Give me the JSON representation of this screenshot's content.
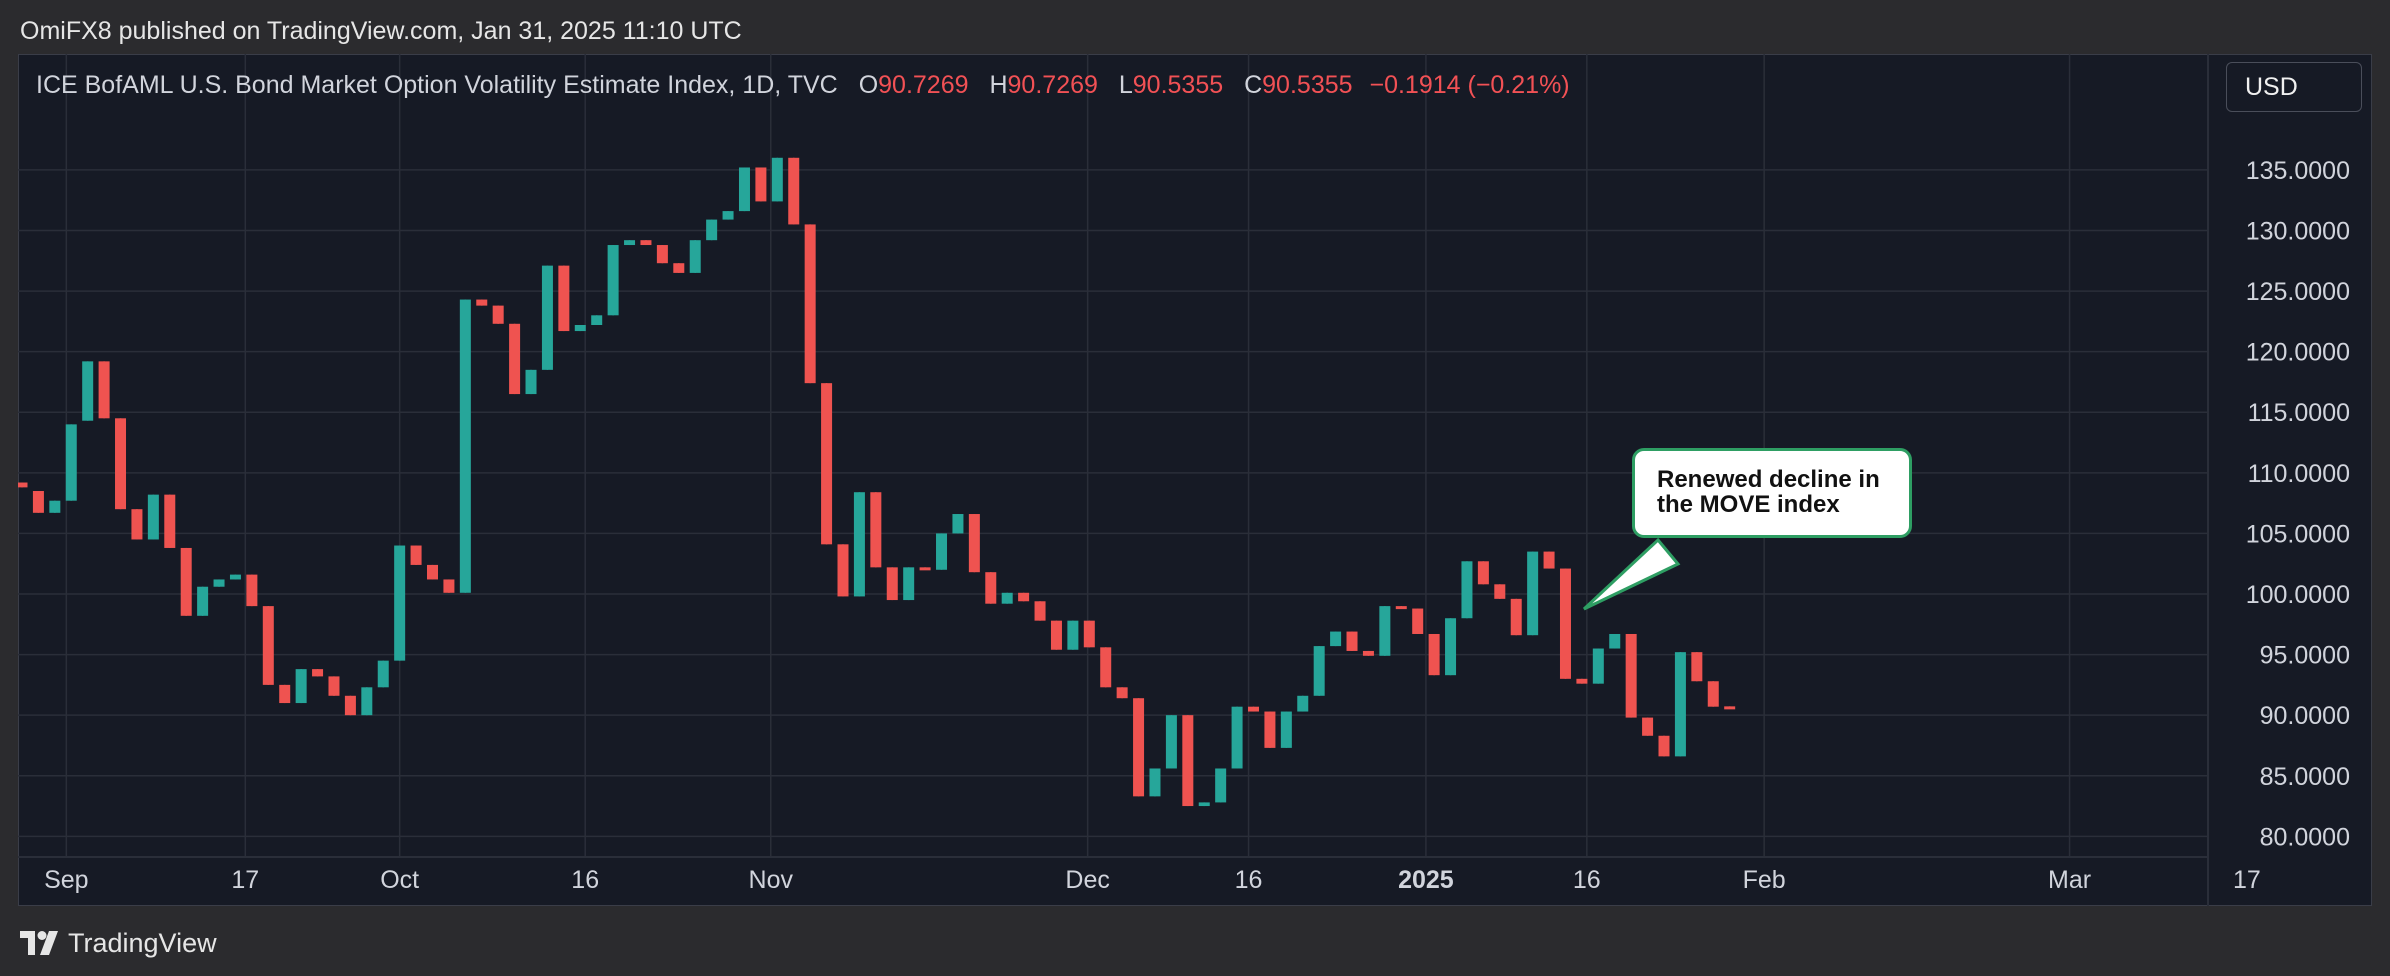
{
  "header": {
    "published_text": "OmiFX8 published on TradingView.com, Jan 31, 2025 11:10 UTC"
  },
  "legend": {
    "symbol": "ICE BofAML U.S. Bond Market Option Volatility Estimate Index, 1D, TVC",
    "open_label": "O",
    "open": "90.7269",
    "high_label": "H",
    "high": "90.7269",
    "low_label": "L",
    "low": "90.5355",
    "close_label": "C",
    "close": "90.5355",
    "change": "−0.1914 (−0.21%)"
  },
  "currency": "USD",
  "annotation": {
    "line1": "Renewed decline in",
    "line2": "the MOVE index"
  },
  "footer": {
    "brand": "TradingView"
  },
  "colors": {
    "up": "#26a69a",
    "down": "#ef5350",
    "background": "#161a25",
    "grid": "#2a2e39",
    "text": "#d1d4dc",
    "annotation_border": "#2e9e63"
  },
  "chart_data": {
    "type": "candlestick",
    "y_axis": {
      "min": 78,
      "max": 138,
      "ticks": [
        "135.0000",
        "130.0000",
        "125.0000",
        "120.0000",
        "115.0000",
        "110.0000",
        "105.0000",
        "100.0000",
        "95.0000",
        "90.0000",
        "85.0000",
        "80.0000"
      ]
    },
    "x_axis": {
      "ticks": [
        {
          "label": "Sep",
          "bar": 2.7,
          "bold": false
        },
        {
          "label": "17",
          "bar": 13.6,
          "bold": false
        },
        {
          "label": "Oct",
          "bar": 23.0,
          "bold": false
        },
        {
          "label": "16",
          "bar": 34.3,
          "bold": false
        },
        {
          "label": "Nov",
          "bar": 45.6,
          "bold": false
        },
        {
          "label": "Dec",
          "bar": 64.9,
          "bold": false
        },
        {
          "label": "16",
          "bar": 74.7,
          "bold": false
        },
        {
          "label": "2025",
          "bar": 85.5,
          "bold": true
        },
        {
          "label": "16",
          "bar": 95.3,
          "bold": false
        },
        {
          "label": "Feb",
          "bar": 106.1,
          "bold": false
        },
        {
          "label": "Mar",
          "bar": 124.7,
          "bold": false
        },
        {
          "label": "17",
          "bar": 135.5,
          "bold": false
        }
      ]
    },
    "candles": [
      {
        "o": 109.2,
        "h": 109.2,
        "c": 108.8,
        "l": 108.8
      },
      {
        "o": 108.5,
        "h": 108.5,
        "c": 106.7,
        "l": 106.7
      },
      {
        "o": 106.7,
        "h": 107.7,
        "c": 107.7,
        "l": 106.7
      },
      {
        "o": 107.7,
        "h": 114.0,
        "c": 114.0,
        "l": 107.7
      },
      {
        "o": 114.3,
        "h": 119.2,
        "c": 119.2,
        "l": 114.3
      },
      {
        "o": 119.2,
        "h": 119.2,
        "c": 114.5,
        "l": 114.5
      },
      {
        "o": 114.5,
        "h": 114.5,
        "c": 107.0,
        "l": 107.0
      },
      {
        "o": 107.0,
        "h": 107.0,
        "c": 104.5,
        "l": 104.5
      },
      {
        "o": 104.5,
        "h": 108.2,
        "c": 108.2,
        "l": 104.5
      },
      {
        "o": 108.2,
        "h": 108.2,
        "c": 103.8,
        "l": 103.8
      },
      {
        "o": 103.8,
        "h": 103.8,
        "c": 98.2,
        "l": 98.2
      },
      {
        "o": 98.2,
        "h": 100.6,
        "c": 100.6,
        "l": 98.2
      },
      {
        "o": 100.6,
        "h": 101.2,
        "c": 101.2,
        "l": 100.6
      },
      {
        "o": 101.2,
        "h": 101.6,
        "c": 101.6,
        "l": 101.2
      },
      {
        "o": 101.6,
        "h": 101.6,
        "c": 99.0,
        "l": 99.0
      },
      {
        "o": 99.0,
        "h": 99.0,
        "c": 92.5,
        "l": 92.5
      },
      {
        "o": 92.5,
        "h": 92.5,
        "c": 91.0,
        "l": 91.0
      },
      {
        "o": 91.0,
        "h": 93.8,
        "c": 93.8,
        "l": 91.0
      },
      {
        "o": 93.8,
        "h": 93.8,
        "c": 93.2,
        "l": 93.2
      },
      {
        "o": 93.2,
        "h": 93.2,
        "c": 91.6,
        "l": 91.6
      },
      {
        "o": 91.6,
        "h": 91.6,
        "c": 90.0,
        "l": 90.0
      },
      {
        "o": 90.0,
        "h": 92.3,
        "c": 92.3,
        "l": 90.0
      },
      {
        "o": 92.3,
        "h": 94.5,
        "c": 94.5,
        "l": 92.3
      },
      {
        "o": 94.5,
        "h": 104.0,
        "c": 104.0,
        "l": 94.5
      },
      {
        "o": 104.0,
        "h": 104.0,
        "c": 102.4,
        "l": 102.4
      },
      {
        "o": 102.4,
        "h": 102.4,
        "c": 101.2,
        "l": 101.2
      },
      {
        "o": 101.2,
        "h": 101.2,
        "c": 100.1,
        "l": 100.1
      },
      {
        "o": 100.1,
        "h": 124.3,
        "c": 124.3,
        "l": 100.1
      },
      {
        "o": 124.3,
        "h": 124.3,
        "c": 123.8,
        "l": 123.8
      },
      {
        "o": 123.8,
        "h": 123.8,
        "c": 122.3,
        "l": 122.3
      },
      {
        "o": 122.3,
        "h": 122.3,
        "c": 116.5,
        "l": 116.5
      },
      {
        "o": 116.5,
        "h": 118.5,
        "c": 118.5,
        "l": 116.5
      },
      {
        "o": 118.5,
        "h": 127.1,
        "c": 127.1,
        "l": 118.5
      },
      {
        "o": 127.1,
        "h": 127.1,
        "c": 121.7,
        "l": 121.7
      },
      {
        "o": 121.7,
        "h": 122.2,
        "c": 122.2,
        "l": 121.7
      },
      {
        "o": 122.2,
        "h": 123.0,
        "c": 123.0,
        "l": 122.2
      },
      {
        "o": 123.0,
        "h": 128.8,
        "c": 128.8,
        "l": 123.0
      },
      {
        "o": 128.8,
        "h": 129.2,
        "c": 129.2,
        "l": 128.8
      },
      {
        "o": 129.2,
        "h": 129.2,
        "c": 128.8,
        "l": 128.8
      },
      {
        "o": 128.8,
        "h": 128.8,
        "c": 127.3,
        "l": 127.3
      },
      {
        "o": 127.3,
        "h": 127.3,
        "c": 126.5,
        "l": 126.5
      },
      {
        "o": 126.5,
        "h": 129.2,
        "c": 129.2,
        "l": 126.5
      },
      {
        "o": 129.2,
        "h": 130.9,
        "c": 130.9,
        "l": 129.2
      },
      {
        "o": 130.9,
        "h": 131.6,
        "c": 131.6,
        "l": 130.9
      },
      {
        "o": 131.6,
        "h": 135.2,
        "c": 135.2,
        "l": 131.6
      },
      {
        "o": 135.2,
        "h": 135.2,
        "c": 132.4,
        "l": 132.4
      },
      {
        "o": 132.4,
        "h": 136.0,
        "c": 136.0,
        "l": 132.4
      },
      {
        "o": 136.0,
        "h": 136.0,
        "c": 130.5,
        "l": 130.5
      },
      {
        "o": 130.5,
        "h": 130.5,
        "c": 117.4,
        "l": 117.4
      },
      {
        "o": 117.4,
        "h": 117.4,
        "c": 104.1,
        "l": 104.1
      },
      {
        "o": 104.1,
        "h": 104.1,
        "c": 99.8,
        "l": 99.8
      },
      {
        "o": 99.8,
        "h": 108.4,
        "c": 108.4,
        "l": 99.8
      },
      {
        "o": 108.4,
        "h": 108.4,
        "c": 102.2,
        "l": 102.2
      },
      {
        "o": 102.2,
        "h": 102.2,
        "c": 99.5,
        "l": 99.5
      },
      {
        "o": 99.5,
        "h": 102.2,
        "c": 102.2,
        "l": 99.5
      },
      {
        "o": 102.2,
        "h": 102.2,
        "c": 102.0,
        "l": 102.0
      },
      {
        "o": 102.0,
        "h": 105.0,
        "c": 105.0,
        "l": 102.0
      },
      {
        "o": 105.0,
        "h": 106.6,
        "c": 106.6,
        "l": 105.0
      },
      {
        "o": 106.6,
        "h": 106.6,
        "c": 101.8,
        "l": 101.8
      },
      {
        "o": 101.8,
        "h": 101.8,
        "c": 99.2,
        "l": 99.2
      },
      {
        "o": 99.2,
        "h": 100.1,
        "c": 100.1,
        "l": 99.2
      },
      {
        "o": 100.1,
        "h": 100.1,
        "c": 99.4,
        "l": 99.4
      },
      {
        "o": 99.4,
        "h": 99.4,
        "c": 97.8,
        "l": 97.8
      },
      {
        "o": 97.8,
        "h": 97.8,
        "c": 95.4,
        "l": 95.4
      },
      {
        "o": 95.4,
        "h": 97.8,
        "c": 97.8,
        "l": 95.4
      },
      {
        "o": 97.8,
        "h": 97.8,
        "c": 95.6,
        "l": 95.6
      },
      {
        "o": 95.6,
        "h": 95.6,
        "c": 92.3,
        "l": 92.3
      },
      {
        "o": 92.3,
        "h": 92.3,
        "c": 91.4,
        "l": 91.4
      },
      {
        "o": 91.4,
        "h": 91.4,
        "c": 83.3,
        "l": 83.3
      },
      {
        "o": 83.3,
        "h": 85.6,
        "c": 85.6,
        "l": 83.3
      },
      {
        "o": 85.6,
        "h": 90.0,
        "c": 90.0,
        "l": 85.6
      },
      {
        "o": 90.0,
        "h": 90.0,
        "c": 82.5,
        "l": 82.5
      },
      {
        "o": 82.5,
        "h": 82.8,
        "c": 82.8,
        "l": 82.5
      },
      {
        "o": 82.8,
        "h": 85.6,
        "c": 85.6,
        "l": 82.8
      },
      {
        "o": 85.6,
        "h": 90.7,
        "c": 90.7,
        "l": 85.6
      },
      {
        "o": 90.7,
        "h": 90.7,
        "c": 90.3,
        "l": 90.3
      },
      {
        "o": 90.3,
        "h": 90.3,
        "c": 87.3,
        "l": 87.3
      },
      {
        "o": 87.3,
        "h": 90.3,
        "c": 90.3,
        "l": 87.3
      },
      {
        "o": 90.3,
        "h": 91.6,
        "c": 91.6,
        "l": 90.3
      },
      {
        "o": 91.6,
        "h": 95.7,
        "c": 95.7,
        "l": 91.6
      },
      {
        "o": 95.7,
        "h": 96.9,
        "c": 96.9,
        "l": 95.7
      },
      {
        "o": 96.9,
        "h": 96.9,
        "c": 95.3,
        "l": 95.3
      },
      {
        "o": 95.3,
        "h": 95.3,
        "c": 94.9,
        "l": 94.9
      },
      {
        "o": 94.9,
        "h": 99.0,
        "c": 99.0,
        "l": 94.9
      },
      {
        "o": 99.0,
        "h": 99.0,
        "c": 98.8,
        "l": 98.8
      },
      {
        "o": 98.8,
        "h": 98.8,
        "c": 96.7,
        "l": 96.7
      },
      {
        "o": 96.7,
        "h": 96.7,
        "c": 93.3,
        "l": 93.3
      },
      {
        "o": 93.3,
        "h": 98.0,
        "c": 98.0,
        "l": 93.3
      },
      {
        "o": 98.0,
        "h": 102.7,
        "c": 102.7,
        "l": 98.0
      },
      {
        "o": 102.7,
        "h": 102.7,
        "c": 100.8,
        "l": 100.8
      },
      {
        "o": 100.8,
        "h": 100.8,
        "c": 99.6,
        "l": 99.6
      },
      {
        "o": 99.6,
        "h": 99.6,
        "c": 96.6,
        "l": 96.6
      },
      {
        "o": 96.6,
        "h": 103.5,
        "c": 103.5,
        "l": 96.6
      },
      {
        "o": 103.5,
        "h": 103.5,
        "c": 102.1,
        "l": 102.1
      },
      {
        "o": 102.1,
        "h": 102.1,
        "c": 93.0,
        "l": 93.0
      },
      {
        "o": 93.0,
        "h": 93.0,
        "c": 92.6,
        "l": 92.6
      },
      {
        "o": 92.6,
        "h": 95.5,
        "c": 95.5,
        "l": 92.6
      },
      {
        "o": 95.5,
        "h": 96.7,
        "c": 96.7,
        "l": 95.5
      },
      {
        "o": 96.7,
        "h": 96.7,
        "c": 89.8,
        "l": 89.8
      },
      {
        "o": 89.8,
        "h": 89.8,
        "c": 88.3,
        "l": 88.3
      },
      {
        "o": 88.3,
        "h": 88.3,
        "c": 86.6,
        "l": 86.6
      },
      {
        "o": 86.6,
        "h": 95.2,
        "c": 95.2,
        "l": 86.6
      },
      {
        "o": 95.2,
        "h": 95.2,
        "c": 92.8,
        "l": 92.8
      },
      {
        "o": 92.8,
        "h": 92.8,
        "c": 90.7,
        "l": 90.7
      },
      {
        "o": 90.7269,
        "h": 90.7269,
        "c": 90.5355,
        "l": 90.5355
      }
    ]
  }
}
